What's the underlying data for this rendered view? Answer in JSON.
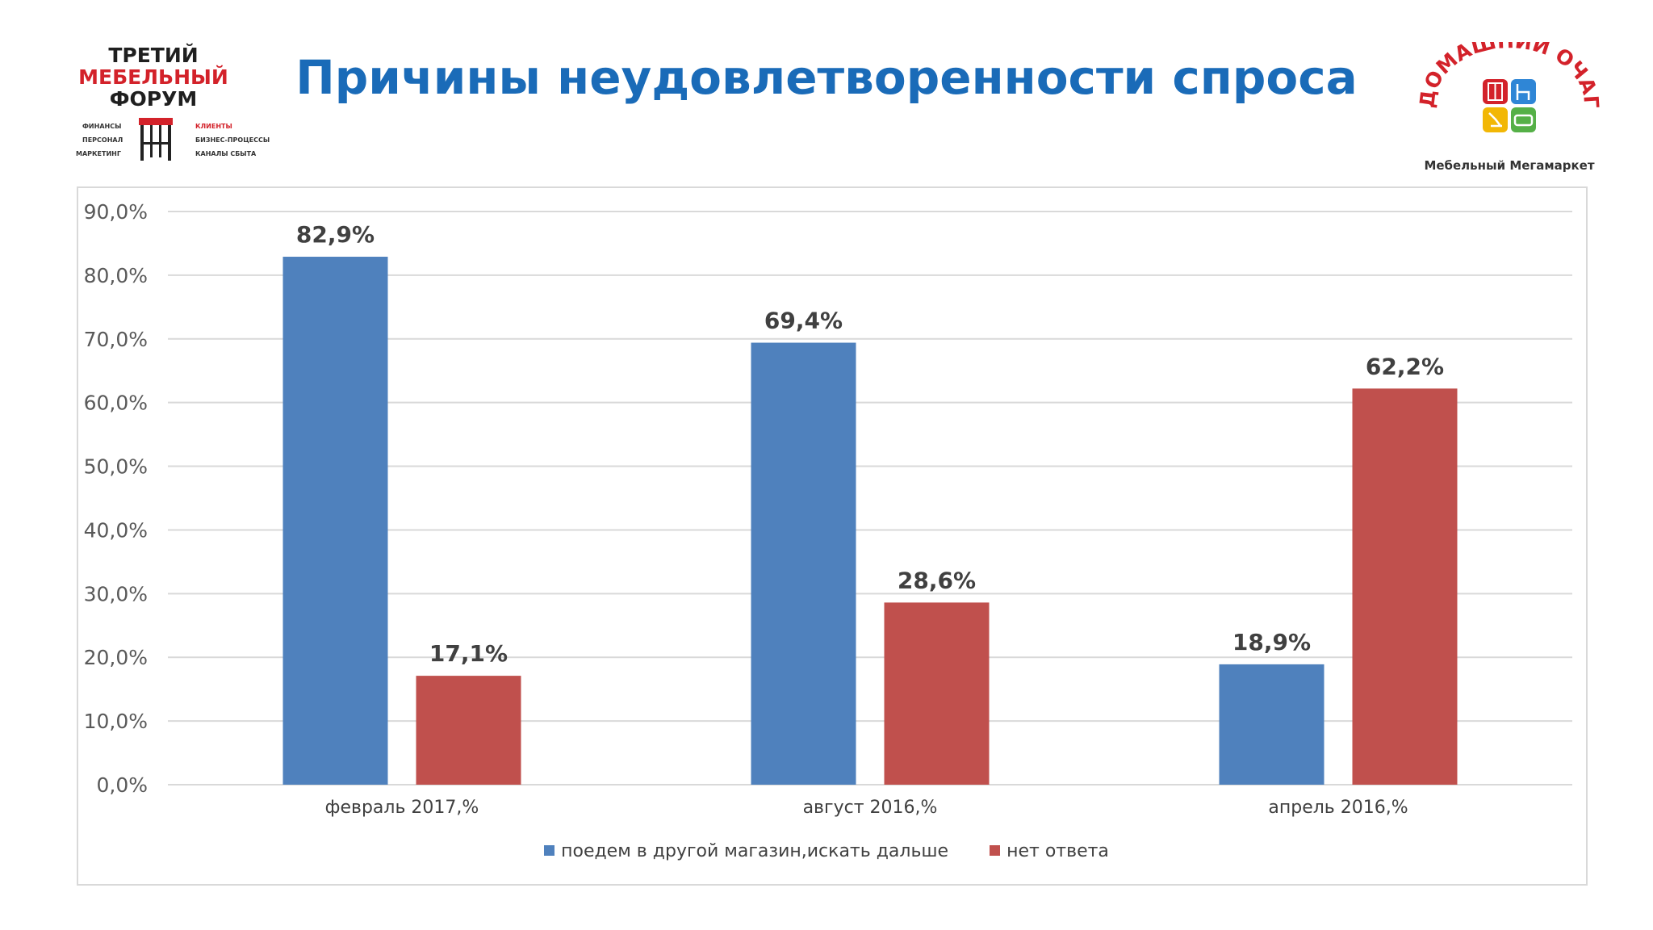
{
  "header": {
    "title": "Причины неудовлетворенности спроса"
  },
  "logo_left": {
    "line1": "ТРЕТИЙ",
    "line2": "МЕБЕЛЬНЫЙ",
    "line3": "ФОРУМ",
    "left_items": [
      "ФИНАНСЫ",
      "ПЕРСОНАЛ",
      "МАРКЕТИНГ"
    ],
    "right_items": [
      "КЛИЕНТЫ",
      "БИЗНЕС-ПРОЦЕССЫ",
      "КАНАЛЫ СБЫТА"
    ]
  },
  "logo_right": {
    "arc_text": "ДОМАШНИЙ ОЧАГ",
    "tagline": "Мебельный Мегамаркет"
  },
  "colors": {
    "title": "#1a6bb8",
    "series1": "#4f81bd",
    "series2": "#c0504d",
    "grid": "#d9d9d9"
  },
  "chart_data": {
    "type": "bar",
    "categories": [
      "февраль 2017,%",
      "август 2016,%",
      "апрель 2016,%"
    ],
    "series": [
      {
        "name": "поедем в другой магазин,искать дальше",
        "values": [
          82.9,
          69.4,
          18.9
        ],
        "labels": [
          "82,9%",
          "69,4%",
          "18,9%"
        ]
      },
      {
        "name": "нет ответа",
        "values": [
          17.1,
          28.6,
          62.2
        ],
        "labels": [
          "17,1%",
          "28,6%",
          "62,2%"
        ]
      }
    ],
    "ylim": [
      0,
      90
    ],
    "yticks": [
      "0,0%",
      "10,0%",
      "20,0%",
      "30,0%",
      "40,0%",
      "50,0%",
      "60,0%",
      "70,0%",
      "80,0%",
      "90,0%"
    ],
    "grid": true,
    "legend": "bottom"
  }
}
